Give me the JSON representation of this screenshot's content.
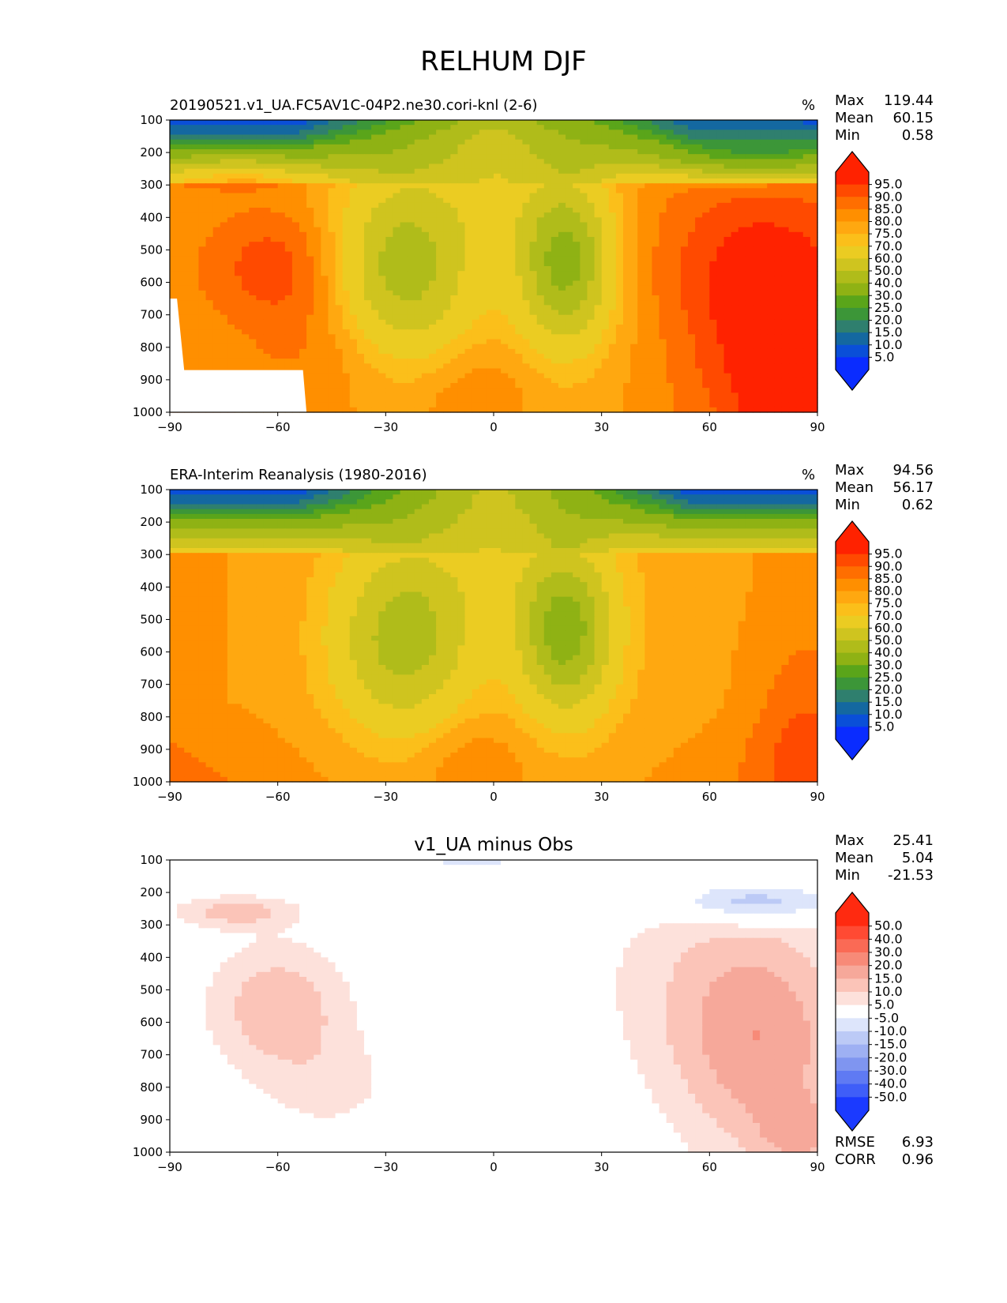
{
  "figure": {
    "title": "RELHUM DJF"
  },
  "chart_data": [
    {
      "type": "contour",
      "title": "20190521.v1_UA.FC5AV1C-04P2.ne30.cori-knl (2-6)",
      "units": "%",
      "xlim": [
        -90,
        90
      ],
      "ylim": [
        1000,
        100
      ],
      "x_ticks": [
        "−90",
        "−60",
        "−30",
        "0",
        "30",
        "60",
        "90"
      ],
      "y_ticks": [
        "100",
        "200",
        "300",
        "400",
        "500",
        "600",
        "700",
        "800",
        "900",
        "1000"
      ],
      "colorbar_labels": [
        "95.0",
        "90.0",
        "85.0",
        "80.0",
        "75.0",
        "70.0",
        "60.0",
        "50.0",
        "40.0",
        "30.0",
        "25.0",
        "20.0",
        "15.0",
        "10.0",
        "5.0"
      ],
      "colorbar_colors": [
        "#ff2200",
        "#ff4a00",
        "#ff6e00",
        "#ff8f00",
        "#ffa810",
        "#fbbf1a",
        "#ebcc22",
        "#cfc41f",
        "#b0bc1a",
        "#8fb214",
        "#5aa51a",
        "#3c9638",
        "#2f7f6e",
        "#1468a0",
        "#0a4fd8",
        "#0a2cff"
      ],
      "colorbar_over": "#ff2200",
      "colorbar_under": "#0a2cff",
      "stats": [
        {
          "label": "Max",
          "value": "119.44"
        },
        {
          "label": "Mean",
          "value": "60.15"
        },
        {
          "label": "Min",
          "value": "0.58"
        }
      ]
    },
    {
      "type": "contour",
      "title": "ERA-Interim Reanalysis (1980-2016)",
      "units": "%",
      "xlim": [
        -90,
        90
      ],
      "ylim": [
        1000,
        100
      ],
      "x_ticks": [
        "−90",
        "−60",
        "−30",
        "0",
        "30",
        "60",
        "90"
      ],
      "y_ticks": [
        "100",
        "200",
        "300",
        "400",
        "500",
        "600",
        "700",
        "800",
        "900",
        "1000"
      ],
      "colorbar_labels": [
        "95.0",
        "90.0",
        "85.0",
        "80.0",
        "75.0",
        "70.0",
        "60.0",
        "50.0",
        "40.0",
        "30.0",
        "25.0",
        "20.0",
        "15.0",
        "10.0",
        "5.0"
      ],
      "colorbar_colors": [
        "#ff2200",
        "#ff4a00",
        "#ff6e00",
        "#ff8f00",
        "#ffa810",
        "#fbbf1a",
        "#ebcc22",
        "#cfc41f",
        "#b0bc1a",
        "#8fb214",
        "#5aa51a",
        "#3c9638",
        "#2f7f6e",
        "#1468a0",
        "#0a4fd8",
        "#0a2cff"
      ],
      "colorbar_over": "#ff2200",
      "colorbar_under": "#0a2cff",
      "stats": [
        {
          "label": "Max",
          "value": "94.56"
        },
        {
          "label": "Mean",
          "value": "56.17"
        },
        {
          "label": "Min",
          "value": "0.62"
        }
      ]
    },
    {
      "type": "contour",
      "title": "v1_UA minus Obs",
      "units": "",
      "xlim": [
        -90,
        90
      ],
      "ylim": [
        1000,
        100
      ],
      "x_ticks": [
        "−90",
        "−60",
        "−30",
        "0",
        "30",
        "60",
        "90"
      ],
      "y_ticks": [
        "100",
        "200",
        "300",
        "400",
        "500",
        "600",
        "700",
        "800",
        "900",
        "1000"
      ],
      "colorbar_labels": [
        "50.0",
        "40.0",
        "30.0",
        "20.0",
        "15.0",
        "10.0",
        "5.0",
        "-5.0",
        "-10.0",
        "-15.0",
        "-20.0",
        "-30.0",
        "-40.0",
        "-50.0"
      ],
      "colorbar_colors": [
        "#ff2a10",
        "#ff4a33",
        "#fa6a55",
        "#f78a78",
        "#f6a89a",
        "#fbc4b8",
        "#fde1db",
        "#ffffff",
        "#dde5fb",
        "#bccaf6",
        "#9eb0f3",
        "#7f95f0",
        "#5f7af3",
        "#3f5ef8",
        "#1b3aff"
      ],
      "colorbar_over": "#ff2a10",
      "colorbar_under": "#1b3aff",
      "stats": [
        {
          "label": "Max",
          "value": "25.41"
        },
        {
          "label": "Mean",
          "value": "5.04"
        },
        {
          "label": "Min",
          "value": "-21.53"
        }
      ],
      "metrics": [
        {
          "label": "RMSE",
          "value": "6.93"
        },
        {
          "label": "CORR",
          "value": "0.96"
        }
      ]
    }
  ]
}
